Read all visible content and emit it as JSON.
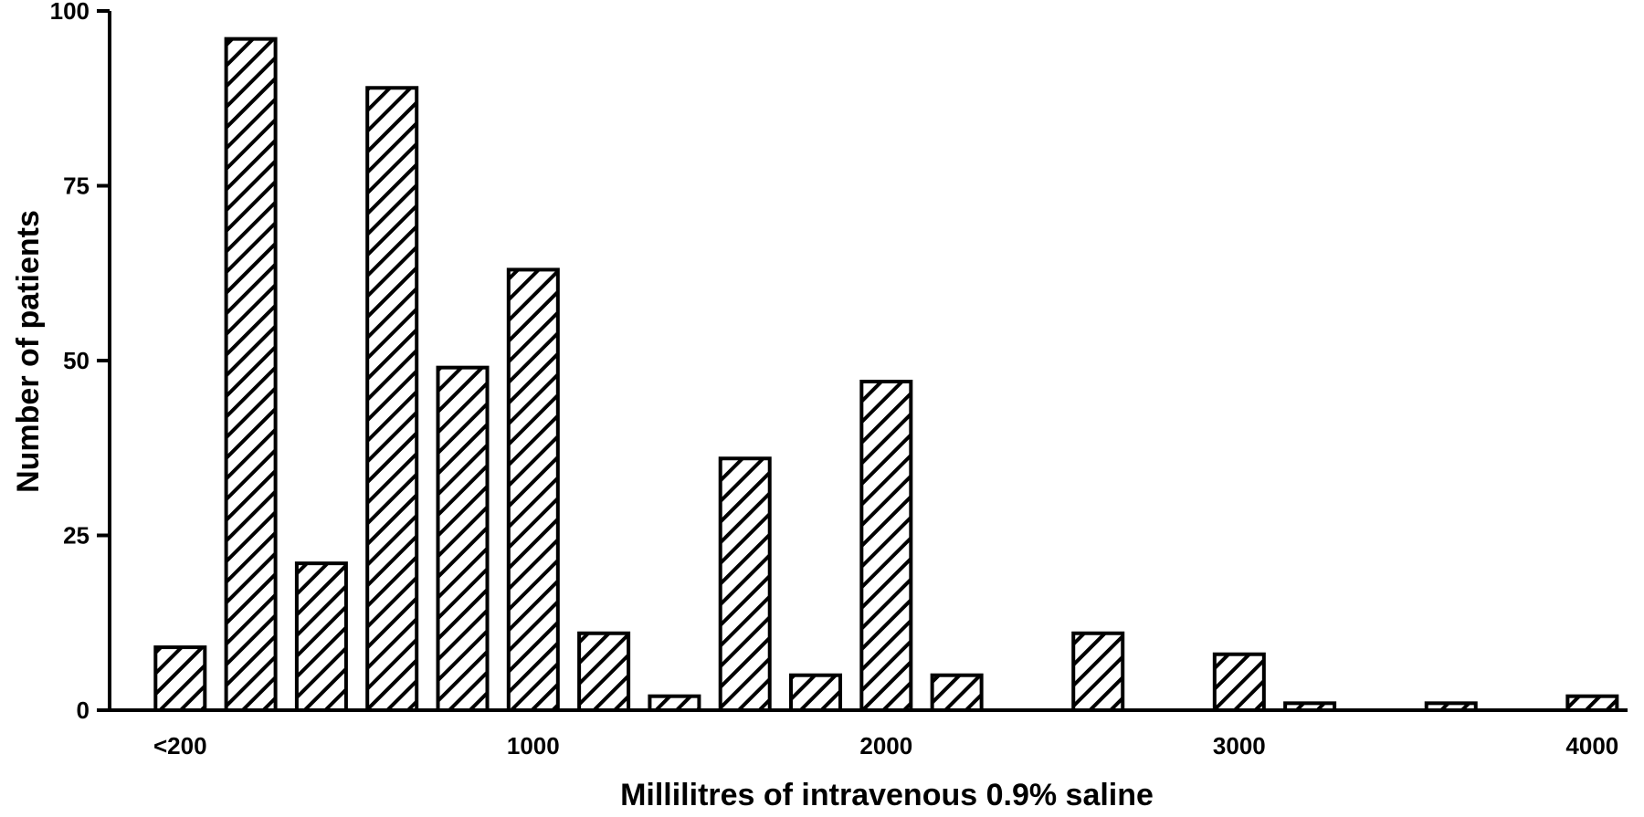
{
  "chart_data": {
    "type": "bar",
    "xlabel": "Millilitres of intravenous 0.9% saline",
    "ylabel": "Number of patients",
    "ylim": [
      0,
      100
    ],
    "y_ticks": [
      0,
      25,
      50,
      75,
      100
    ],
    "x_ticks": [
      {
        "label": "<200",
        "x": 0
      },
      {
        "label": "1000",
        "x": 1000
      },
      {
        "label": "2000",
        "x": 2000
      },
      {
        "label": "3000",
        "x": 3000
      },
      {
        "label": "4000",
        "x": 4000
      }
    ],
    "xlim": [
      -200,
      4100
    ],
    "bar_fill": "diagonal hatch",
    "grid": false,
    "bars": [
      {
        "x": 0,
        "value": 9
      },
      {
        "x": 200,
        "value": 96
      },
      {
        "x": 400,
        "value": 21
      },
      {
        "x": 600,
        "value": 89
      },
      {
        "x": 800,
        "value": 49
      },
      {
        "x": 1000,
        "value": 63
      },
      {
        "x": 1200,
        "value": 11
      },
      {
        "x": 1400,
        "value": 2
      },
      {
        "x": 1600,
        "value": 36
      },
      {
        "x": 1800,
        "value": 5
      },
      {
        "x": 2000,
        "value": 47
      },
      {
        "x": 2200,
        "value": 5
      },
      {
        "x": 2600,
        "value": 11
      },
      {
        "x": 3000,
        "value": 8
      },
      {
        "x": 3200,
        "value": 1
      },
      {
        "x": 3600,
        "value": 1
      },
      {
        "x": 4000,
        "value": 2
      }
    ]
  }
}
